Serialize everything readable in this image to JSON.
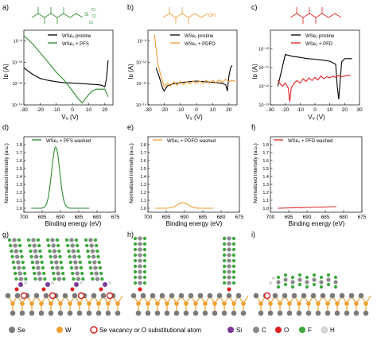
{
  "panels": {
    "a": {
      "letter": "a)",
      "legend": [
        "WSe₂ pristine",
        "WSe₂ + PFS"
      ],
      "xlabel": "V₉ (V)",
      "ylabel": "Iᴅ (A)"
    },
    "b": {
      "letter": "b)",
      "legend": [
        "WSe₂ pristine",
        "WSe₂ + PDFO"
      ],
      "xlabel": "V₉ (V)",
      "ylabel": "Iᴅ (A)"
    },
    "c": {
      "letter": "c)",
      "legend": [
        "WSe₂ pristine",
        "WSe₂ + PFD"
      ],
      "xlabel": "V₉ (V)",
      "ylabel": "Iᴅ (A)"
    },
    "d": {
      "letter": "d)",
      "legend": [
        "WSe₂ + PFS washed"
      ],
      "xlabel": "Binding energy (eV)",
      "ylabel": "Normalized intensity (a.u.)"
    },
    "e": {
      "letter": "e)",
      "legend": [
        "WSe₂ + PDFO washed"
      ],
      "xlabel": "Binding energy (eV)",
      "ylabel": "Normalized intensity (a.u.)"
    },
    "f": {
      "letter": "f)",
      "legend": [
        "WSe₂ + PFD washed"
      ],
      "xlabel": "Binding energy (eV)",
      "ylabel": "Normalized intensity (a.u.)"
    },
    "g": {
      "letter": "g)"
    },
    "h": {
      "letter": "h)"
    },
    "i": {
      "letter": "i)"
    }
  },
  "molecule_labels": {
    "si": "Si",
    "cl": "Cl",
    "oh": "OH"
  },
  "legend_atoms": [
    {
      "label": "Se",
      "color": "#7a7a7a"
    },
    {
      "label": "W",
      "color": "#f0a030"
    },
    {
      "label": "Se vacancy or O substitutional atom",
      "color": "#d42020"
    },
    {
      "label": "Si",
      "color": "#7a3a9a"
    },
    {
      "label": "C",
      "color": "#8a8a8a"
    },
    {
      "label": "O",
      "color": "#e02020"
    },
    {
      "label": "F",
      "color": "#3aa83a"
    },
    {
      "label": "H",
      "color": "#d8d8d8"
    }
  ],
  "colors": {
    "pristine": "#000000",
    "pfs": "#2a8a2a",
    "pdfo": "#f29a2e",
    "pfd": "#e02020"
  },
  "chart_data": [
    {
      "type": "line",
      "panel": "a",
      "xlabel": "VG (V)",
      "ylabel": "ID (A)",
      "yscale": "log",
      "xlim": [
        -30,
        25
      ],
      "ylim": [
        1e-14,
        1e-07
      ],
      "xticks": [
        -30,
        -20,
        -10,
        0,
        10,
        20
      ],
      "yticks": [
        "10⁻⁸",
        "10⁻¹⁰",
        "10⁻¹²",
        "10⁻¹⁴"
      ],
      "series": [
        {
          "name": "WSe2 pristine",
          "x": [
            -30,
            -25,
            -20,
            -15,
            -10,
            -5,
            0,
            5,
            10,
            15,
            18,
            20,
            21,
            22
          ],
          "y": [
            3e-11,
            8e-12,
            3e-12,
            2e-12,
            1.5e-12,
            1.2e-12,
            1.1e-12,
            1e-12,
            9e-13,
            8e-13,
            7e-13,
            5e-13,
            3e-12,
            1.5e-10
          ]
        },
        {
          "name": "WSe2 + PFS",
          "x": [
            -30,
            -25,
            -20,
            -15,
            -10,
            -5,
            0,
            3,
            6,
            9,
            12,
            15,
            18,
            20,
            22
          ],
          "y": [
            3e-08,
            6e-09,
            8e-10,
            1e-10,
            1.2e-11,
            2e-12,
            2e-13,
            5e-14,
            1.5e-14,
            6e-14,
            2e-13,
            3e-13,
            3e-13,
            3e-13,
            6e-14
          ]
        }
      ]
    },
    {
      "type": "line",
      "panel": "b",
      "xlabel": "VG (V)",
      "ylabel": "ID (A)",
      "yscale": "log",
      "xlim": [
        -30,
        25
      ],
      "ylim": [
        1e-14,
        1e-07
      ],
      "xticks": [
        -30,
        -20,
        -10,
        0,
        10,
        20
      ],
      "yticks": [
        "10⁻⁸",
        "10⁻¹⁰",
        "10⁻¹²",
        "10⁻¹⁴"
      ],
      "series": [
        {
          "name": "WSe2 pristine",
          "x": [
            -25,
            -23,
            -21,
            -20,
            -18,
            -15,
            -10,
            -5,
            0,
            5,
            10,
            15,
            18,
            19,
            20,
            21,
            22
          ],
          "y": [
            3e-11,
            4e-12,
            4e-13,
            2e-13,
            6e-13,
            9e-13,
            1.2e-12,
            1.5e-12,
            1.7e-12,
            1.5e-12,
            1.3e-12,
            1.1e-12,
            8e-13,
            2e-13,
            5e-12,
            3e-11,
            5e-11
          ]
        },
        {
          "name": "WSe2 + PDFO",
          "x": [
            -26,
            -24,
            -22,
            -20,
            -18,
            -16,
            -14,
            -12,
            -10,
            -8,
            -6,
            -4,
            -2,
            0,
            2,
            4,
            6,
            8,
            10,
            12,
            14,
            16,
            18,
            20,
            22,
            24
          ],
          "y": [
            4e-08,
            1e-10,
            5e-12,
            5e-13,
            1e-12,
            6e-13,
            1.5e-12,
            7e-13,
            1.6e-12,
            8e-13,
            1.5e-12,
            9e-13,
            1.7e-12,
            1e-12,
            1.8e-12,
            1e-12,
            2e-12,
            1.1e-12,
            2e-12,
            1.2e-12,
            2.2e-12,
            1.3e-12,
            2.5e-12,
            1.5e-12,
            2e-12,
            1.6e-12
          ]
        }
      ]
    },
    {
      "type": "line",
      "panel": "c",
      "xlabel": "VG (V)",
      "ylabel": "ID (A)",
      "yscale": "log",
      "xlim": [
        -30,
        30
      ],
      "ylim": [
        1e-13,
        1e-09
      ],
      "xticks": [
        -30,
        -20,
        -10,
        0,
        10,
        20,
        30
      ],
      "yticks": [
        "10⁻¹⁰",
        "10⁻¹¹",
        "10⁻¹²",
        "10⁻¹³"
      ],
      "series": [
        {
          "name": "WSe2 pristine",
          "x": [
            -25,
            -22,
            -20,
            -15,
            -10,
            -5,
            0,
            5,
            10,
            14,
            15,
            16,
            17,
            18,
            20,
            25
          ],
          "y": [
            1e-12,
            1e-11,
            5e-11,
            4e-11,
            3.5e-11,
            3e-11,
            2.8e-11,
            2.5e-11,
            2.2e-11,
            1.5e-11,
            1e-12,
            2e-13,
            2e-12,
            2e-11,
            3e-11,
            3e-11
          ]
        },
        {
          "name": "WSe2 + PFD",
          "x": [
            -25,
            -22,
            -20,
            -18,
            -17,
            -16,
            -14,
            -12,
            -10,
            -8,
            -6,
            -4,
            -2,
            0,
            2,
            4,
            6,
            8,
            10,
            12,
            14,
            16,
            18,
            20,
            22,
            24
          ],
          "y": [
            2e-12,
            1e-12,
            1.5e-12,
            8e-13,
            1.5e-13,
            8e-13,
            1.5e-12,
            2e-12,
            1.5e-12,
            2.5e-12,
            1.8e-12,
            2.8e-12,
            2e-12,
            3e-12,
            2.2e-12,
            3.5e-12,
            2.5e-12,
            3.2e-12,
            2.8e-12,
            3.5e-12,
            3e-12,
            3.8e-12,
            3.2e-12,
            3.5e-12,
            4e-12,
            3.8e-12
          ]
        }
      ]
    },
    {
      "type": "line",
      "panel": "d",
      "xlabel": "Binding energy (eV)",
      "ylabel": "Normalized intensity (a.u.)",
      "xlim": [
        700,
        675
      ],
      "ylim": [
        0.95,
        1.9
      ],
      "xticks": [
        700,
        695,
        690,
        685,
        680,
        675
      ],
      "yticks": [
        1.0,
        1.1,
        1.2,
        1.3,
        1.4,
        1.5,
        1.6,
        1.7,
        1.8
      ],
      "series": [
        {
          "name": "WSe2 + PFS washed",
          "peak_center": 691.3,
          "peak_height": 1.77,
          "baseline": 1.0,
          "sigma": 1.1,
          "x_range": [
            698,
            682
          ]
        }
      ]
    },
    {
      "type": "line",
      "panel": "e",
      "xlabel": "Binding energy (eV)",
      "ylabel": "Normalized intensity (a.u.)",
      "xlim": [
        700,
        675
      ],
      "ylim": [
        0.95,
        1.9
      ],
      "xticks": [
        700,
        695,
        690,
        685,
        680,
        675
      ],
      "yticks": [
        1.0,
        1.1,
        1.2,
        1.3,
        1.4,
        1.5,
        1.6,
        1.7,
        1.8
      ],
      "series": [
        {
          "name": "WSe2 + PDFO washed",
          "peak_center": 690.5,
          "peak_height": 1.07,
          "baseline": 1.0,
          "sigma": 1.5,
          "x_range": [
            698,
            682
          ]
        }
      ]
    },
    {
      "type": "line",
      "panel": "f",
      "xlabel": "Binding energy (eV)",
      "ylabel": "Normalized intensity (a.u.)",
      "xlim": [
        700,
        675
      ],
      "ylim": [
        0.95,
        1.9
      ],
      "xticks": [
        700,
        695,
        690,
        685,
        680,
        675
      ],
      "yticks": [
        1.0,
        1.1,
        1.2,
        1.3,
        1.4,
        1.5,
        1.6,
        1.7,
        1.8
      ],
      "series": [
        {
          "name": "WSe2 + PFD washed",
          "slope_from": 1.0,
          "slope_to": 1.02,
          "x_range": [
            698,
            682
          ]
        }
      ]
    }
  ]
}
